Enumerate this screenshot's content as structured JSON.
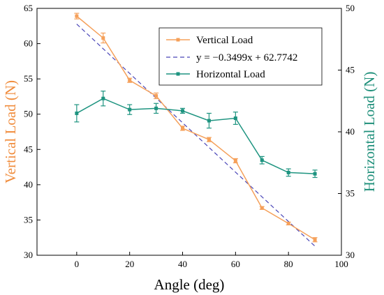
{
  "chart_data": {
    "type": "line",
    "xlabel": "Angle (deg)",
    "ylabel_left": "Vertical Load (N)",
    "ylabel_right": "Horizontal Load (N)",
    "xlim": [
      -15,
      100
    ],
    "ylim_left": [
      30,
      65
    ],
    "ylim_right": [
      30,
      50
    ],
    "x_ticks": [
      0,
      20,
      40,
      60,
      80,
      100
    ],
    "y_ticks_left": [
      30,
      35,
      40,
      45,
      50,
      55,
      60,
      65
    ],
    "y_ticks_right": [
      30,
      35,
      40,
      45,
      50
    ],
    "grid": false,
    "legend_position": "top-right",
    "colors": {
      "vertical": "#f5a05a",
      "horizontal": "#1e9480",
      "fit": "#4a46b8",
      "left_axis_title": "#f08c3c",
      "right_axis_title": "#1e8f7a"
    },
    "series": [
      {
        "name": "Vertical Load",
        "axis": "left",
        "x": [
          0,
          10,
          20,
          30,
          40,
          50,
          60,
          70,
          80,
          90
        ],
        "values": [
          63.9,
          60.8,
          54.8,
          52.6,
          48.0,
          46.4,
          43.4,
          36.7,
          34.5,
          32.2
        ],
        "errors": [
          0.4,
          0.7,
          0.3,
          0.4,
          0.3,
          0.3,
          0.3,
          0.2,
          0.2,
          0.3
        ]
      },
      {
        "name": "Horizontal Load",
        "axis": "right",
        "x": [
          0,
          10,
          20,
          30,
          40,
          50,
          60,
          70,
          80,
          90
        ],
        "values": [
          41.5,
          42.7,
          41.8,
          41.9,
          41.7,
          40.9,
          41.1,
          37.7,
          36.7,
          36.6
        ],
        "errors": [
          0.7,
          0.6,
          0.4,
          0.4,
          0.2,
          0.6,
          0.5,
          0.3,
          0.3,
          0.3
        ]
      }
    ],
    "fit": {
      "name": "y = −0.3499x + 62.7742",
      "slope": -0.3499,
      "intercept": 62.7742,
      "x_range": [
        0,
        90
      ],
      "axis": "left"
    }
  }
}
